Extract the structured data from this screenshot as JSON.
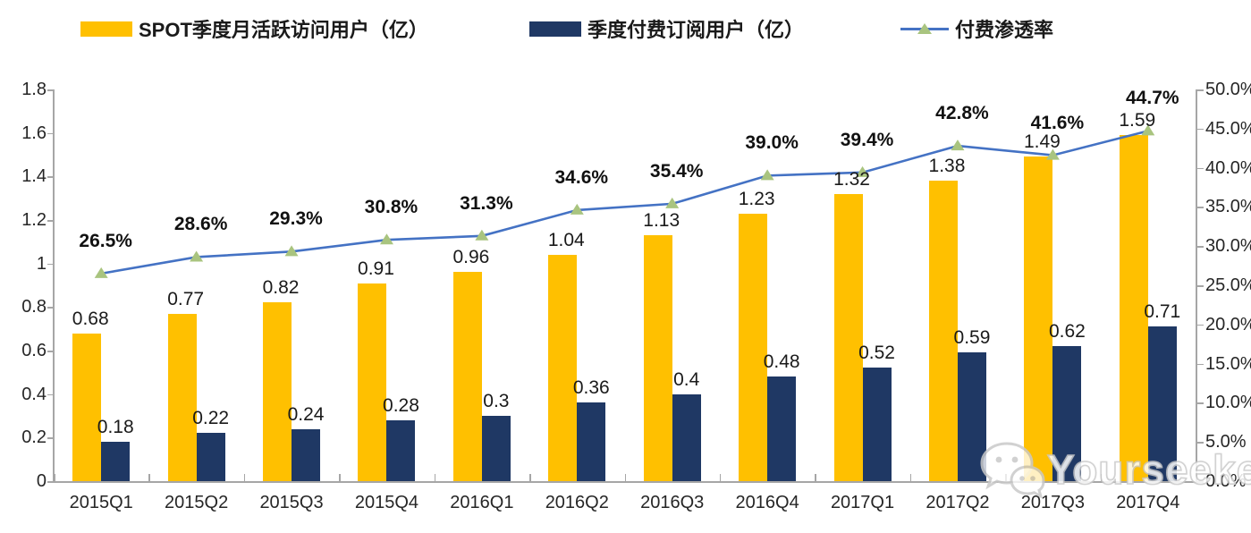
{
  "legend": {
    "items": [
      {
        "label": "SPOT季度月活跃访问用户（亿）",
        "swatch": "bar",
        "color": "#FFC000"
      },
      {
        "label": "季度付费订阅用户（亿）",
        "swatch": "bar",
        "color": "#1F3864"
      },
      {
        "label": "付费渗透率",
        "swatch": "line-marker",
        "line_color": "#4472C4",
        "marker_color": "#A9C47F"
      }
    ]
  },
  "chart_data": {
    "type": "bar",
    "subtype": "combo-bar-line-dual-axis",
    "categories": [
      "2015Q1",
      "2015Q2",
      "2015Q3",
      "2015Q4",
      "2016Q1",
      "2016Q2",
      "2016Q3",
      "2016Q4",
      "2017Q1",
      "2017Q2",
      "2017Q3",
      "2017Q4"
    ],
    "series": [
      {
        "name": "SPOT季度月活跃访问用户（亿）",
        "type": "bar",
        "axis": "left",
        "color": "#FFC000",
        "values": [
          0.68,
          0.77,
          0.82,
          0.91,
          0.96,
          1.04,
          1.13,
          1.23,
          1.32,
          1.38,
          1.49,
          1.59
        ],
        "labels": [
          "0.68",
          "0.77",
          "0.82",
          "0.91",
          "0.96",
          "1.04",
          "1.13",
          "1.23",
          "1.32",
          "1.38",
          "1.49",
          "1.59"
        ]
      },
      {
        "name": "季度付费订阅用户（亿）",
        "type": "bar",
        "axis": "left",
        "color": "#1F3864",
        "values": [
          0.18,
          0.22,
          0.24,
          0.28,
          0.3,
          0.36,
          0.4,
          0.48,
          0.52,
          0.59,
          0.62,
          0.71
        ],
        "labels": [
          "0.18",
          "0.22",
          "0.24",
          "0.28",
          "0.3",
          "0.36",
          "0.4",
          "0.48",
          "0.52",
          "0.59",
          "0.62",
          "0.71"
        ]
      },
      {
        "name": "付费渗透率",
        "type": "line",
        "axis": "right",
        "color": "#4472C4",
        "marker": "triangle",
        "marker_color": "#A9C47F",
        "values": [
          26.5,
          28.6,
          29.3,
          30.8,
          31.3,
          34.6,
          35.4,
          39.0,
          39.4,
          42.8,
          41.6,
          44.7
        ],
        "labels": [
          "26.5%",
          "28.6%",
          "29.3%",
          "30.8%",
          "31.3%",
          "34.6%",
          "35.4%",
          "39.0%",
          "39.4%",
          "42.8%",
          "41.6%",
          "44.7%"
        ]
      }
    ],
    "left_axis": {
      "min": 0,
      "max": 1.8,
      "ticks": [
        "0",
        "0.2",
        "0.4",
        "0.6",
        "0.8",
        "1",
        "1.2",
        "1.4",
        "1.6",
        "1.8"
      ]
    },
    "right_axis": {
      "min": 0,
      "max": 50,
      "ticks": [
        "0.0%",
        "5.0%",
        "10.0%",
        "15.0%",
        "20.0%",
        "25.0%",
        "30.0%",
        "35.0%",
        "40.0%",
        "45.0%",
        "50.0%"
      ]
    },
    "grid": false,
    "legend_position": "top"
  },
  "watermark": {
    "text": "Yourseeker",
    "icon": "wechat-icon"
  }
}
